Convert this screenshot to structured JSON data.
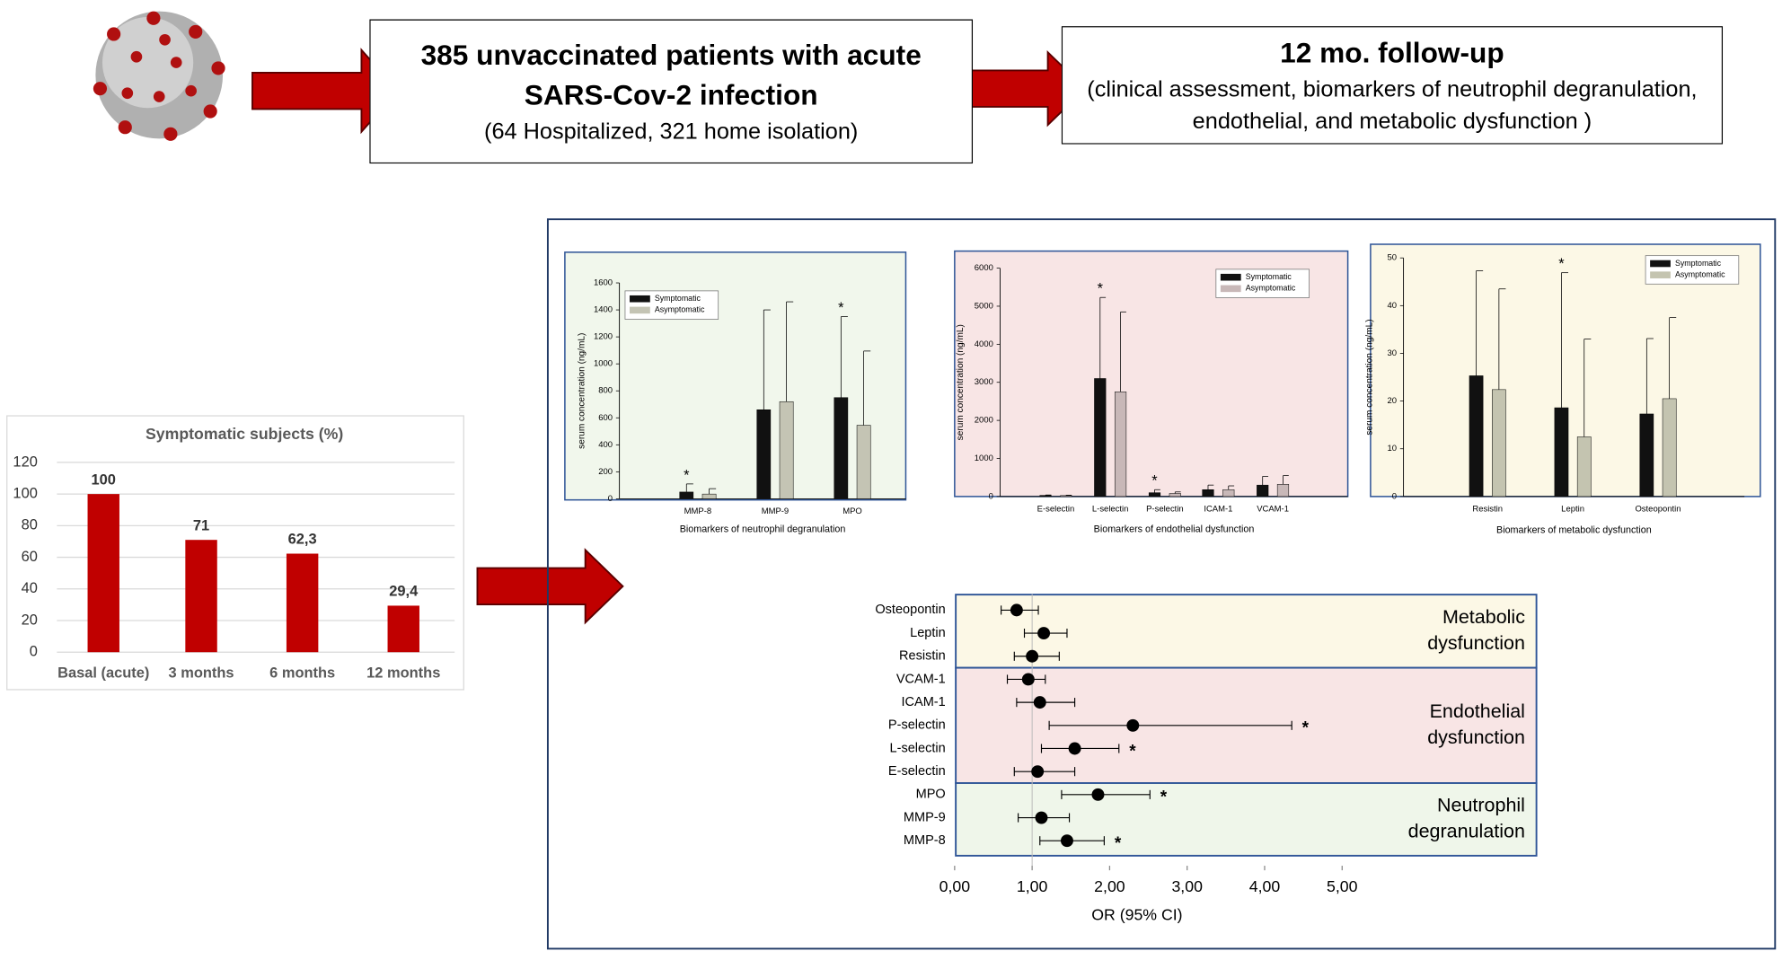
{
  "boxes": [
    {
      "title": "385 unvaccinated patients with acute SARS-Cov-2 infection",
      "text": "(64 Hospitalized, 321 home isolation)"
    },
    {
      "title": "12 mo. follow-up",
      "text": "(clinical assessment, biomarkers of neutrophil degranulation, endothelial, and metabolic dysfunction )"
    }
  ],
  "chart_data": [
    {
      "type": "bar",
      "title": "Symptomatic subjects (%)",
      "categories": [
        "Basal (acute)",
        "3 months",
        "6 months",
        "12 months"
      ],
      "values": [
        100,
        71,
        62.3,
        29.4
      ],
      "value_labels": [
        "100",
        "71",
        "62,3",
        "29,4"
      ],
      "color": "#c00000",
      "ylim": [
        0,
        120
      ],
      "yticks": [
        0,
        20,
        40,
        60,
        80,
        100,
        120
      ],
      "grid": true
    },
    {
      "type": "bar",
      "x_label": "Biomarkers of neutrophil degranulation",
      "y_label": "serum concentration (ng/mL)",
      "background": "#f1f7ec",
      "categories": [
        "MMP-8",
        "MMP-9",
        "MPO"
      ],
      "series": [
        {
          "name": "Symptomatic",
          "color": "#111111",
          "values": [
            50,
            660,
            750
          ],
          "errors": [
            60,
            740,
            600
          ]
        },
        {
          "name": "Asymptomatic",
          "color": "#c4c4b4",
          "values": [
            35,
            720,
            545
          ],
          "errors": [
            40,
            740,
            550
          ]
        }
      ],
      "annotations": [
        {
          "text": "*",
          "index": 0
        },
        {
          "text": "*",
          "index": 2
        }
      ],
      "ylim": [
        0,
        1600
      ],
      "yticks": [
        0,
        200,
        400,
        600,
        800,
        1000,
        1200,
        1400,
        1600
      ],
      "grid": false
    },
    {
      "type": "bar",
      "x_label": "Biomarkers of endothelial dysfunction",
      "y_label": "serum concentration (ng/mL)",
      "background": "#f8e5e5",
      "categories": [
        "E-selectin",
        "L-selectin",
        "P-selectin",
        "ICAM-1",
        "VCAM-1"
      ],
      "series": [
        {
          "name": "Symptomatic",
          "color": "#111111",
          "values": [
            30,
            3100,
            100,
            180,
            300
          ],
          "errors": [
            10,
            2130,
            80,
            120,
            230
          ]
        },
        {
          "name": "Asymptomatic",
          "color": "#c8b8b8",
          "values": [
            25,
            2750,
            80,
            180,
            320
          ],
          "errors": [
            10,
            2100,
            40,
            100,
            230
          ]
        }
      ],
      "annotations": [
        {
          "text": "*",
          "index": 1
        },
        {
          "text": "*",
          "index": 2
        }
      ],
      "ylim": [
        0,
        6000
      ],
      "yticks": [
        0,
        1000,
        2000,
        3000,
        4000,
        5000,
        6000
      ],
      "grid": false
    },
    {
      "type": "bar",
      "x_label": "Biomarkers of metabolic dysfunction",
      "y_label": "serum concentration (ng/mL)",
      "background": "#fcf8e6",
      "categories": [
        "Resistin",
        "Leptin",
        "Osteopontin"
      ],
      "series": [
        {
          "name": "Symptomatic",
          "color": "#111111",
          "values": [
            25.3,
            18.6,
            17.3
          ],
          "errors": [
            22,
            28.3,
            15.8
          ]
        },
        {
          "name": "Asymptomatic",
          "color": "#c4c4b0",
          "values": [
            22.4,
            12.5,
            20.5
          ],
          "errors": [
            21.1,
            20.5,
            17
          ]
        }
      ],
      "annotations": [
        {
          "text": "*",
          "index": 1
        }
      ],
      "ylim": [
        0,
        50
      ],
      "yticks": [
        0,
        10,
        20,
        30,
        40,
        50
      ],
      "grid": false
    },
    {
      "type": "forest",
      "x_label": "OR (95% CI)",
      "categories": [
        "Osteopontin",
        "Leptin",
        "Resistin",
        "VCAM-1",
        "ICAM-1",
        "P-selectin",
        "L-selectin",
        "E-selectin",
        "MPO",
        "MMP-9",
        "MMP-8"
      ],
      "values": [
        0.8,
        1.15,
        1.0,
        0.95,
        1.1,
        2.3,
        1.55,
        1.07,
        1.85,
        1.12,
        1.45
      ],
      "ci_low": [
        0.6,
        0.9,
        0.77,
        0.68,
        0.8,
        1.22,
        1.12,
        0.77,
        1.38,
        0.82,
        1.1
      ],
      "ci_high": [
        1.08,
        1.45,
        1.35,
        1.17,
        1.55,
        4.35,
        2.12,
        1.55,
        2.52,
        1.48,
        1.93
      ],
      "groups": [
        {
          "lines": [
            "Metabolic",
            "dysfunction"
          ],
          "start": 0,
          "end": 2,
          "color": "#fcf8e6"
        },
        {
          "lines": [
            "Endothelial",
            "dysfunction"
          ],
          "start": 3,
          "end": 7,
          "color": "#f8e5e5"
        },
        {
          "lines": [
            "Neutrophil",
            "degranulation"
          ],
          "start": 8,
          "end": 10,
          "color": "#eff6ea"
        }
      ],
      "annotations": [
        {
          "text": "*",
          "index": 5
        },
        {
          "text": "*",
          "index": 6
        },
        {
          "text": "*",
          "index": 8
        },
        {
          "text": "*",
          "index": 10
        }
      ],
      "reference": 1,
      "color": "#000000",
      "xlim": [
        0,
        5
      ],
      "xticks": [
        {
          "value": 0,
          "label": "0,00"
        },
        {
          "value": 1,
          "label": "1,00"
        },
        {
          "value": 2,
          "label": "2,00"
        },
        {
          "value": 3,
          "label": "3,00"
        },
        {
          "value": 4,
          "label": "4,00"
        },
        {
          "value": 5,
          "label": "5,00"
        }
      ]
    }
  ]
}
